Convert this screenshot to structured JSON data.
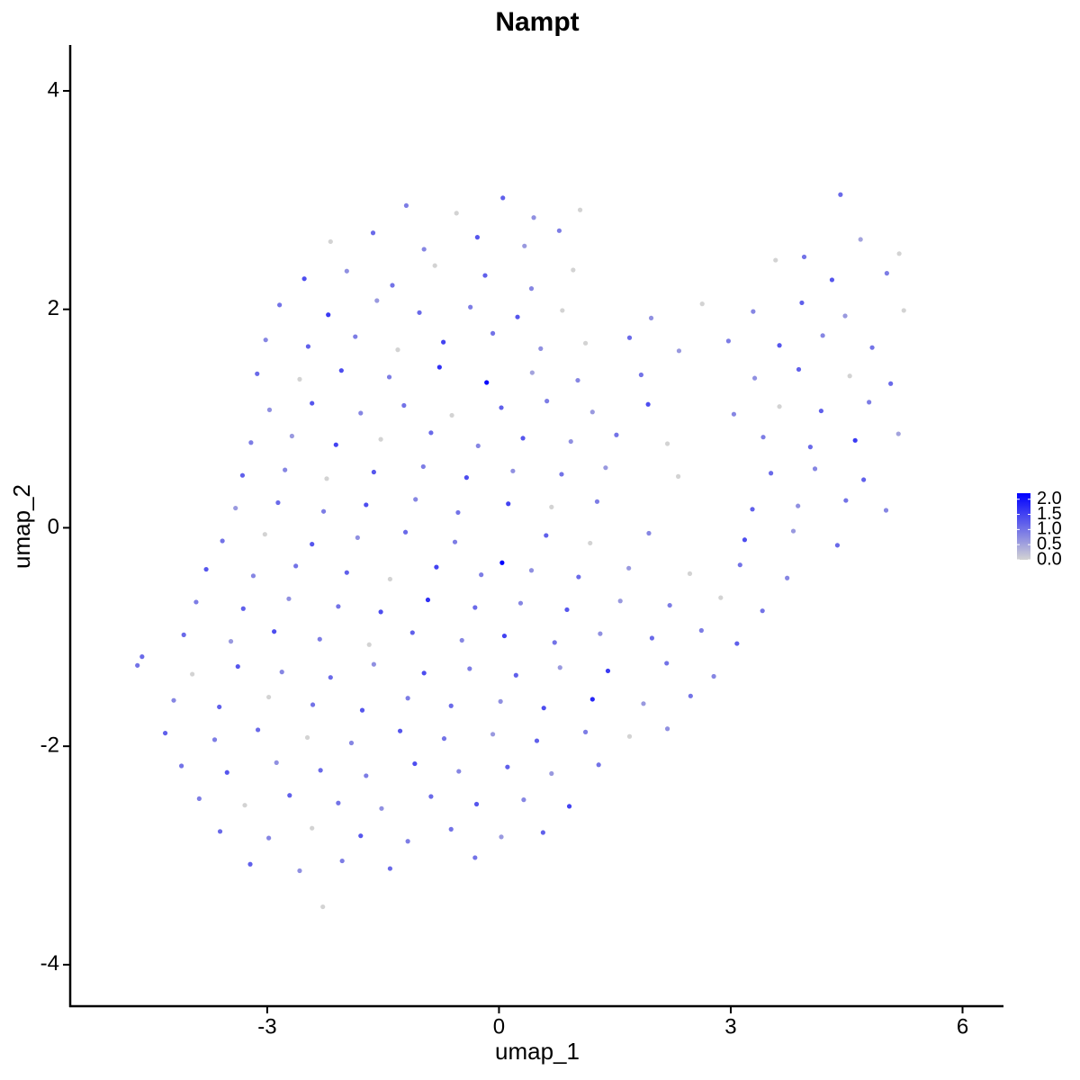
{
  "chart_data": {
    "type": "scatter",
    "title": "Nampt",
    "x_label": "umap_1",
    "y_label": "umap_2",
    "xlim": [
      -5.55,
      6.53
    ],
    "ylim": [
      -4.38,
      4.42
    ],
    "xticks": [
      -3,
      0,
      3,
      6
    ],
    "yticks": [
      -4,
      -2,
      0,
      2,
      4
    ],
    "point_size": 2.6,
    "colorbar": {
      "low_color": "#d3d3d3",
      "high_color": "#0000ff",
      "lim": [
        0,
        2.2
      ],
      "ticks": [
        {
          "value": 0,
          "label": "0.0"
        },
        {
          "value": 0.5,
          "label": "0.5"
        },
        {
          "value": 1,
          "label": "1.0"
        },
        {
          "value": 1.5,
          "label": "1.5"
        },
        {
          "value": 2,
          "label": "2.0"
        }
      ]
    },
    "x": [
      -1.2,
      -0.55,
      0.05,
      0.45,
      1.05,
      4.42,
      -2.18,
      -1.63,
      -0.97,
      -0.28,
      0.33,
      0.78,
      3.95,
      4.68,
      5.18,
      -2.52,
      -1.97,
      -1.38,
      -0.83,
      -0.18,
      0.42,
      0.96,
      3.58,
      4.31,
      5.02,
      -2.84,
      -2.21,
      -1.58,
      -1.03,
      -0.37,
      0.24,
      0.82,
      1.97,
      2.63,
      3.29,
      3.92,
      4.48,
      5.24,
      -3.02,
      -2.47,
      -1.86,
      -1.31,
      -0.72,
      -0.08,
      0.54,
      1.12,
      1.69,
      2.33,
      2.97,
      3.63,
      4.19,
      4.83,
      -3.13,
      -2.58,
      -2.04,
      -1.42,
      -0.77,
      -0.16,
      0.43,
      1.02,
      1.84,
      3.31,
      3.88,
      4.54,
      5.07,
      -2.97,
      -2.42,
      -1.79,
      -1.23,
      -0.61,
      0.03,
      0.62,
      1.21,
      1.93,
      3.04,
      3.63,
      4.17,
      4.79,
      -3.21,
      -2.68,
      -2.11,
      -1.53,
      -0.88,
      -0.27,
      0.31,
      0.93,
      1.52,
      2.18,
      3.42,
      4.03,
      4.61,
      5.17,
      -3.32,
      -2.77,
      -2.23,
      -1.62,
      -0.98,
      -0.42,
      0.18,
      0.81,
      1.38,
      2.32,
      3.52,
      4.09,
      4.72,
      -3.41,
      -2.86,
      -2.27,
      -1.72,
      -1.08,
      -0.53,
      0.12,
      0.68,
      1.27,
      3.28,
      3.87,
      4.49,
      5.01,
      -3.58,
      -3.03,
      -2.42,
      -1.83,
      -1.21,
      -0.57,
      0.04,
      0.61,
      1.18,
      1.94,
      3.18,
      3.81,
      4.38,
      -3.79,
      -3.18,
      -2.63,
      -1.97,
      -1.41,
      -0.81,
      -0.23,
      0.42,
      1.03,
      1.68,
      2.47,
      3.12,
      3.73,
      -3.92,
      -3.31,
      -2.72,
      -2.08,
      -1.53,
      -0.92,
      -0.31,
      0.28,
      0.88,
      1.57,
      2.21,
      2.87,
      3.41,
      -4.08,
      -3.47,
      -2.91,
      -2.32,
      -1.68,
      -1.12,
      -0.48,
      0.07,
      0.72,
      1.31,
      1.98,
      2.62,
      3.08,
      -4.68,
      -3.97,
      -3.38,
      -2.81,
      -2.18,
      -1.62,
      -0.97,
      -0.38,
      0.22,
      0.79,
      1.41,
      2.17,
      2.78,
      -4.21,
      -3.62,
      -2.98,
      -2.41,
      -1.77,
      -1.18,
      -0.62,
      0.02,
      0.58,
      1.21,
      1.87,
      2.48,
      -4.32,
      -3.68,
      -3.12,
      -2.48,
      -1.91,
      -1.28,
      -0.71,
      -0.08,
      0.49,
      1.12,
      1.69,
      2.18,
      -4.11,
      -3.52,
      -2.88,
      -2.31,
      -1.72,
      -1.09,
      -0.52,
      0.11,
      0.68,
      1.29,
      -3.88,
      -3.29,
      -2.71,
      -2.08,
      -1.52,
      -0.88,
      -0.29,
      0.32,
      0.91,
      -3.61,
      -2.98,
      -2.42,
      -1.79,
      -1.18,
      -0.62,
      0.03,
      0.57,
      -3.22,
      -2.58,
      -2.03,
      -1.41,
      -0.31,
      -2.28,
      -4.62
    ],
    "y": [
      2.95,
      2.88,
      3.02,
      2.84,
      2.91,
      3.05,
      2.62,
      2.7,
      2.55,
      2.66,
      2.58,
      2.72,
      2.48,
      2.64,
      2.51,
      2.28,
      2.35,
      2.22,
      2.4,
      2.31,
      2.19,
      2.36,
      2.45,
      2.27,
      2.33,
      2.04,
      1.95,
      2.08,
      1.97,
      2.02,
      1.93,
      1.99,
      1.92,
      2.05,
      1.98,
      2.06,
      1.94,
      1.99,
      1.72,
      1.66,
      1.75,
      1.63,
      1.7,
      1.78,
      1.64,
      1.69,
      1.74,
      1.62,
      1.71,
      1.67,
      1.76,
      1.65,
      1.41,
      1.36,
      1.44,
      1.38,
      1.47,
      1.33,
      1.42,
      1.35,
      1.4,
      1.37,
      1.45,
      1.39,
      1.32,
      1.08,
      1.14,
      1.05,
      1.12,
      1.03,
      1.1,
      1.16,
      1.06,
      1.13,
      1.04,
      1.11,
      1.07,
      1.15,
      0.78,
      0.84,
      0.76,
      0.81,
      0.87,
      0.75,
      0.82,
      0.79,
      0.85,
      0.77,
      0.83,
      0.74,
      0.8,
      0.86,
      0.48,
      0.53,
      0.45,
      0.51,
      0.56,
      0.46,
      0.52,
      0.49,
      0.55,
      0.47,
      0.5,
      0.54,
      0.44,
      0.18,
      0.23,
      0.15,
      0.21,
      0.26,
      0.14,
      0.22,
      0.19,
      0.24,
      0.17,
      0.2,
      0.25,
      0.16,
      -0.12,
      -0.06,
      -0.15,
      -0.09,
      -0.04,
      -0.13,
      -0.32,
      -0.07,
      -0.14,
      -0.05,
      -0.11,
      -0.03,
      -0.16,
      -0.38,
      -0.44,
      -0.35,
      -0.41,
      -0.47,
      -0.36,
      -0.43,
      -0.39,
      -0.45,
      -0.37,
      -0.42,
      -0.34,
      -0.46,
      -0.68,
      -0.74,
      -0.65,
      -0.72,
      -0.77,
      -0.66,
      -0.73,
      -0.69,
      -0.75,
      -0.67,
      -0.71,
      -0.64,
      -0.76,
      -0.98,
      -1.04,
      -0.95,
      -1.02,
      -1.07,
      -0.96,
      -1.03,
      -0.99,
      -1.05,
      -0.97,
      -1.01,
      -0.94,
      -1.06,
      -1.26,
      -1.34,
      -1.27,
      -1.32,
      -1.37,
      -1.25,
      -1.33,
      -1.29,
      -1.35,
      -1.28,
      -1.31,
      -1.24,
      -1.36,
      -1.58,
      -1.64,
      -1.55,
      -1.62,
      -1.67,
      -1.56,
      -1.63,
      -1.59,
      -1.65,
      -1.57,
      -1.61,
      -1.54,
      -1.88,
      -1.94,
      -1.85,
      -1.92,
      -1.97,
      -1.86,
      -1.93,
      -1.89,
      -1.95,
      -1.87,
      -1.91,
      -1.84,
      -2.18,
      -2.24,
      -2.15,
      -2.22,
      -2.27,
      -2.16,
      -2.23,
      -2.19,
      -2.25,
      -2.17,
      -2.48,
      -2.54,
      -2.45,
      -2.52,
      -2.57,
      -2.46,
      -2.53,
      -2.49,
      -2.55,
      -2.78,
      -2.84,
      -2.75,
      -2.82,
      -2.87,
      -2.76,
      -2.83,
      -2.79,
      -3.08,
      -3.14,
      -3.05,
      -3.12,
      -3.02,
      -3.47,
      -1.18
    ],
    "values": [
      0.9,
      0.0,
      1.2,
      0.7,
      0.0,
      1.1,
      0.0,
      1.1,
      0.8,
      1.3,
      0.6,
      0.9,
      1.0,
      0.5,
      0.0,
      1.4,
      0.7,
      1.0,
      0.0,
      1.2,
      0.8,
      0.0,
      0.0,
      1.3,
      0.9,
      1.0,
      1.6,
      0.6,
      1.1,
      0.9,
      1.3,
      0.0,
      0.7,
      0.0,
      0.8,
      1.2,
      0.6,
      0.0,
      0.8,
      1.2,
      0.9,
      0.0,
      1.5,
      1.0,
      0.7,
      0.0,
      1.1,
      0.6,
      0.9,
      1.3,
      0.8,
      1.0,
      1.1,
      0.0,
      1.4,
      0.9,
      1.7,
      2.1,
      0.5,
      0.8,
      1.0,
      0.7,
      1.2,
      0.0,
      1.1,
      0.7,
      1.3,
      0.8,
      1.0,
      0.0,
      1.2,
      0.9,
      0.6,
      1.4,
      0.8,
      0.0,
      1.2,
      0.9,
      0.9,
      0.6,
      1.5,
      0.0,
      1.1,
      0.8,
      1.3,
      0.7,
      1.0,
      0.0,
      0.9,
      1.1,
      1.6,
      0.5,
      1.2,
      0.8,
      0.0,
      1.3,
      0.9,
      1.4,
      0.7,
      1.0,
      0.6,
      0.0,
      1.1,
      0.8,
      1.2,
      0.6,
      1.1,
      0.9,
      1.4,
      0.8,
      1.0,
      1.5,
      0.0,
      0.9,
      1.2,
      0.7,
      1.0,
      0.8,
      1.0,
      0.0,
      1.3,
      0.7,
      1.1,
      0.9,
      2.2,
      1.2,
      0.0,
      0.8,
      1.4,
      0.6,
      1.1,
      1.3,
      0.8,
      1.0,
      1.2,
      0.0,
      1.5,
      0.9,
      0.7,
      1.1,
      0.6,
      0.0,
      1.0,
      0.8,
      0.9,
      1.2,
      0.7,
      1.0,
      1.4,
      1.7,
      1.1,
      0.8,
      1.3,
      0.6,
      0.9,
      0.0,
      1.0,
      1.1,
      0.6,
      1.4,
      0.9,
      0.0,
      1.2,
      0.8,
      1.5,
      1.0,
      0.7,
      1.1,
      0.9,
      1.2,
      1.0,
      0.0,
      1.3,
      0.8,
      1.1,
      0.7,
      1.4,
      0.9,
      1.2,
      0.6,
      1.6,
      1.0,
      0.8,
      0.8,
      1.2,
      0.0,
      1.0,
      1.3,
      0.9,
      1.1,
      0.7,
      1.4,
      1.8,
      0.6,
      1.0,
      1.2,
      0.9,
      1.1,
      0.0,
      0.8,
      1.3,
      1.0,
      0.6,
      1.2,
      0.9,
      0.0,
      0.7,
      1.0,
      1.3,
      0.7,
      1.1,
      0.9,
      1.4,
      0.8,
      1.2,
      0.6,
      1.0,
      0.9,
      0.0,
      1.2,
      1.0,
      0.7,
      1.1,
      1.3,
      0.8,
      1.5,
      1.1,
      0.8,
      0.0,
      1.3,
      0.9,
      1.0,
      0.6,
      1.2,
      1.2,
      0.7,
      0.9,
      1.1,
      1.0,
      0.0,
      1.1
    ]
  }
}
